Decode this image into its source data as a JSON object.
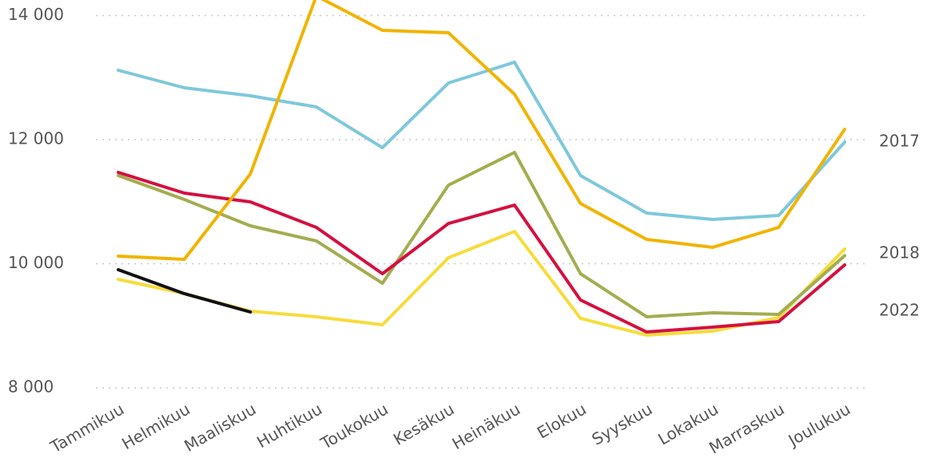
{
  "chart_data": {
    "type": "line",
    "categories": [
      "Tammikuu",
      "Helmikuu",
      "Maaliskuu",
      "Huhtikuu",
      "Toukokuu",
      "Kesäkuu",
      "Heinäkuu",
      "Elokuu",
      "Syyskuu",
      "Lokakuu",
      "Marraskuu",
      "Joulukuu"
    ],
    "ylim": [
      8000,
      14300
    ],
    "yticks": [
      {
        "value": 8000,
        "label": "8 000"
      },
      {
        "value": 10000,
        "label": "10 000"
      },
      {
        "value": 12000,
        "label": "12 000"
      },
      {
        "value": 14000,
        "label": "14 000"
      }
    ],
    "grid": true,
    "series": [
      {
        "color": "#f7dc3c",
        "name": "2018",
        "values": [
          9749,
          9518,
          9235,
          9145,
          9016,
          10096,
          10521,
          9119,
          8849,
          8913,
          9132,
          10238
        ]
      },
      {
        "color": "#a3ad4f",
        "values": [
          11421,
          11035,
          10611,
          10367,
          9685,
          11267,
          11794,
          9839,
          9145,
          9209,
          9183,
          10130
        ]
      },
      {
        "color": "#d4103f",
        "values": [
          11473,
          11138,
          10997,
          10585,
          9839,
          10649,
          10945,
          9415,
          8900,
          8977,
          9067,
          9981
        ]
      },
      {
        "color": "#7ec8db",
        "name": "2017",
        "values": [
          13119,
          12836,
          12707,
          12527,
          11871,
          12913,
          13248,
          11421,
          10817,
          10714,
          10778,
          11961
        ]
      },
      {
        "color": "#f0b400",
        "values": [
          10122,
          10071,
          11447,
          14315,
          13762,
          13723,
          12733,
          10971,
          10392,
          10264,
          10585,
          12167
        ]
      },
      {
        "color": "#111111",
        "name": "2022",
        "values": [
          9904,
          9518,
          9222,
          null,
          null,
          null,
          null,
          null,
          null,
          null,
          null,
          null
        ]
      }
    ]
  }
}
